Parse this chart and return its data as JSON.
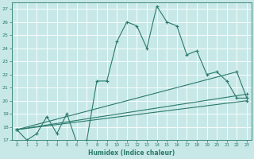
{
  "xlabel": "Humidex (Indice chaleur)",
  "bg_color": "#c8e8e8",
  "line_color": "#2a7a6a",
  "grid_color": "#b0d0d0",
  "ylim": [
    17,
    27.5
  ],
  "xlim": [
    -0.5,
    23.5
  ],
  "yticks": [
    17,
    18,
    19,
    20,
    21,
    22,
    23,
    24,
    25,
    26,
    27
  ],
  "xticks": [
    0,
    1,
    2,
    3,
    4,
    5,
    6,
    7,
    8,
    9,
    10,
    11,
    12,
    13,
    14,
    15,
    16,
    17,
    18,
    19,
    20,
    21,
    22,
    23
  ],
  "line1_x": [
    0,
    1,
    2,
    3,
    4,
    5,
    6,
    7,
    8,
    9,
    10,
    11,
    12,
    13,
    14,
    15,
    16,
    17,
    18,
    19,
    20,
    21,
    22,
    23
  ],
  "line1_y": [
    17.8,
    17.0,
    17.5,
    18.8,
    17.5,
    19.0,
    16.8,
    17.0,
    21.5,
    21.5,
    24.5,
    26.0,
    25.7,
    24.0,
    27.2,
    26.0,
    25.7,
    23.5,
    23.8,
    22.0,
    22.2,
    21.5,
    20.2,
    20.2
  ],
  "line2_x": [
    0,
    22,
    23
  ],
  "line2_y": [
    17.8,
    22.2,
    20.2
  ],
  "line3_x": [
    0,
    23
  ],
  "line3_y": [
    17.8,
    20.5
  ],
  "line4_x": [
    0,
    23
  ],
  "line4_y": [
    17.8,
    20.0
  ]
}
